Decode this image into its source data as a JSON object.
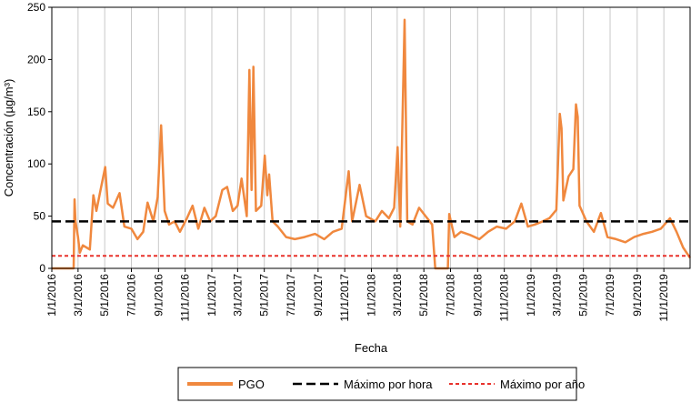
{
  "chart_data": {
    "type": "line",
    "title": "",
    "xlabel": "Fecha",
    "ylabel": "Concentración (µg/m³)",
    "ylim": [
      0,
      250
    ],
    "yticks": [
      0,
      50,
      100,
      150,
      200,
      250
    ],
    "xlim": [
      "2016-01-01",
      "2019-12-31"
    ],
    "xticks": [
      "1/1/2016",
      "3/1/2016",
      "5/1/2016",
      "7/1/2016",
      "9/1/2016",
      "11/1/2016",
      "1/1/2017",
      "3/1/2017",
      "5/1/2017",
      "7/1/2017",
      "9/1/2017",
      "11/1/2017",
      "1/1/2018",
      "3/1/2018",
      "5/1/2018",
      "7/1/2018",
      "9/1/2018",
      "11/1/2018",
      "1/1/2019",
      "3/1/2019",
      "5/1/2019",
      "7/1/2019",
      "9/1/2019",
      "11/1/2019"
    ],
    "grid": "vertical",
    "legend": "bottom",
    "series": [
      {
        "name": "PGO",
        "color": "#f0883e",
        "type": "line",
        "points": [
          [
            "2016-01-01",
            0
          ],
          [
            "2016-02-20",
            0
          ],
          [
            "2016-02-22",
            66
          ],
          [
            "2016-02-24",
            45
          ],
          [
            "2016-03-01",
            30
          ],
          [
            "2016-03-05",
            15
          ],
          [
            "2016-03-12",
            22
          ],
          [
            "2016-03-20",
            20
          ],
          [
            "2016-03-28",
            18
          ],
          [
            "2016-04-05",
            70
          ],
          [
            "2016-04-12",
            55
          ],
          [
            "2016-04-20",
            72
          ],
          [
            "2016-05-02",
            97
          ],
          [
            "2016-05-08",
            62
          ],
          [
            "2016-05-20",
            58
          ],
          [
            "2016-06-04",
            72
          ],
          [
            "2016-06-15",
            40
          ],
          [
            "2016-07-01",
            38
          ],
          [
            "2016-07-15",
            28
          ],
          [
            "2016-07-28",
            35
          ],
          [
            "2016-08-07",
            63
          ],
          [
            "2016-08-20",
            45
          ],
          [
            "2016-08-30",
            68
          ],
          [
            "2016-09-07",
            137
          ],
          [
            "2016-09-15",
            55
          ],
          [
            "2016-09-25",
            42
          ],
          [
            "2016-10-08",
            45
          ],
          [
            "2016-10-20",
            35
          ],
          [
            "2016-11-05",
            48
          ],
          [
            "2016-11-18",
            60
          ],
          [
            "2016-12-01",
            38
          ],
          [
            "2016-12-15",
            58
          ],
          [
            "2016-12-28",
            45
          ],
          [
            "2017-01-10",
            50
          ],
          [
            "2017-01-25",
            75
          ],
          [
            "2017-02-05",
            78
          ],
          [
            "2017-02-18",
            55
          ],
          [
            "2017-03-01",
            60
          ],
          [
            "2017-03-10",
            86
          ],
          [
            "2017-03-22",
            50
          ],
          [
            "2017-03-28",
            190
          ],
          [
            "2017-04-02",
            75
          ],
          [
            "2017-04-06",
            193
          ],
          [
            "2017-04-12",
            55
          ],
          [
            "2017-04-24",
            60
          ],
          [
            "2017-05-02",
            108
          ],
          [
            "2017-05-08",
            70
          ],
          [
            "2017-05-12",
            90
          ],
          [
            "2017-05-20",
            45
          ],
          [
            "2017-06-01",
            40
          ],
          [
            "2017-06-20",
            30
          ],
          [
            "2017-07-10",
            28
          ],
          [
            "2017-08-01",
            30
          ],
          [
            "2017-08-25",
            33
          ],
          [
            "2017-09-15",
            28
          ],
          [
            "2017-10-05",
            35
          ],
          [
            "2017-10-25",
            38
          ],
          [
            "2017-11-10",
            93
          ],
          [
            "2017-11-18",
            45
          ],
          [
            "2017-12-05",
            80
          ],
          [
            "2017-12-20",
            50
          ],
          [
            "2018-01-10",
            45
          ],
          [
            "2018-01-25",
            55
          ],
          [
            "2018-02-10",
            48
          ],
          [
            "2018-02-22",
            58
          ],
          [
            "2018-03-02",
            116
          ],
          [
            "2018-03-08",
            40
          ],
          [
            "2018-03-18",
            238
          ],
          [
            "2018-03-24",
            45
          ],
          [
            "2018-04-05",
            42
          ],
          [
            "2018-04-20",
            58
          ],
          [
            "2018-05-05",
            50
          ],
          [
            "2018-05-20",
            42
          ],
          [
            "2018-05-27",
            0
          ],
          [
            "2018-06-25",
            0
          ],
          [
            "2018-06-28",
            52
          ],
          [
            "2018-07-10",
            30
          ],
          [
            "2018-07-25",
            35
          ],
          [
            "2018-08-15",
            32
          ],
          [
            "2018-09-05",
            28
          ],
          [
            "2018-09-25",
            35
          ],
          [
            "2018-10-15",
            40
          ],
          [
            "2018-11-05",
            38
          ],
          [
            "2018-11-25",
            45
          ],
          [
            "2018-12-10",
            62
          ],
          [
            "2018-12-25",
            40
          ],
          [
            "2019-01-10",
            42
          ],
          [
            "2019-01-28",
            45
          ],
          [
            "2019-02-12",
            48
          ],
          [
            "2019-02-28",
            56
          ],
          [
            "2019-03-08",
            148
          ],
          [
            "2019-03-12",
            134
          ],
          [
            "2019-03-16",
            65
          ],
          [
            "2019-03-28",
            88
          ],
          [
            "2019-04-08",
            95
          ],
          [
            "2019-04-14",
            157
          ],
          [
            "2019-04-18",
            145
          ],
          [
            "2019-04-22",
            60
          ],
          [
            "2019-05-08",
            45
          ],
          [
            "2019-05-25",
            35
          ],
          [
            "2019-06-10",
            53
          ],
          [
            "2019-06-25",
            30
          ],
          [
            "2019-07-15",
            28
          ],
          [
            "2019-08-05",
            25
          ],
          [
            "2019-08-25",
            30
          ],
          [
            "2019-09-15",
            33
          ],
          [
            "2019-10-05",
            35
          ],
          [
            "2019-10-25",
            38
          ],
          [
            "2019-11-15",
            48
          ],
          [
            "2019-11-30",
            35
          ],
          [
            "2019-12-15",
            20
          ],
          [
            "2019-12-31",
            10
          ]
        ]
      },
      {
        "name": "Máximo por hora",
        "color": "#000000",
        "type": "hline",
        "value": 45
      },
      {
        "name": "Máximo por año",
        "color": "#e8322c",
        "type": "hline",
        "value": 12
      }
    ]
  }
}
